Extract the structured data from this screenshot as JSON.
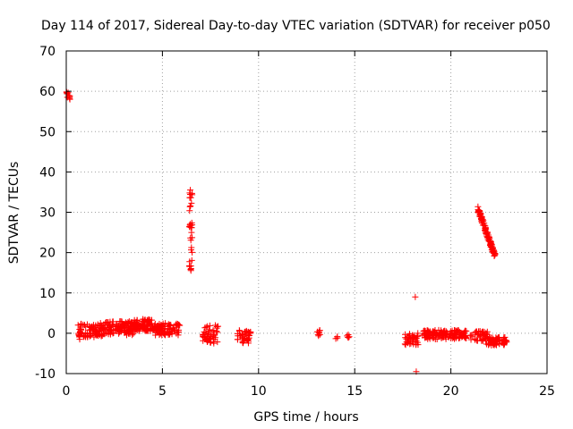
{
  "chart_data": {
    "type": "scatter",
    "title": "Day 114 of 2017, Sidereal Day-to-day VTEC variation (SDTVAR) for receiver p050",
    "xlabel": "GPS time / hours",
    "ylabel": "SDTVAR / TECUs",
    "xlim": [
      0,
      25
    ],
    "ylim": [
      -10,
      70
    ],
    "xticks": [
      "0",
      "5",
      "10",
      "15",
      "20",
      "25"
    ],
    "yticks": [
      "-10",
      "0",
      "10",
      "20",
      "30",
      "40",
      "50",
      "60",
      "70"
    ],
    "grid": true,
    "marker": "plus",
    "color": "#ff0000",
    "clusters": [
      {
        "x0": 0.0,
        "x1": 0.25,
        "y0": 58.0,
        "y1": 60.0,
        "n": 10
      },
      {
        "x0": 0.6,
        "x1": 2.0,
        "y0": -1.0,
        "y1": 2.5,
        "n": 90
      },
      {
        "x0": 2.0,
        "x1": 3.5,
        "y0": -0.5,
        "y1": 3.0,
        "n": 110
      },
      {
        "x0": 3.5,
        "x1": 4.5,
        "y0": 0.5,
        "y1": 3.5,
        "n": 90
      },
      {
        "x0": 4.5,
        "x1": 5.9,
        "y0": -0.5,
        "y1": 2.5,
        "n": 90
      },
      {
        "x0": 6.4,
        "x1": 6.55,
        "y0": 15.0,
        "y1": 35.0,
        "n": 35
      },
      {
        "x0": 7.1,
        "x1": 7.9,
        "y0": -2.5,
        "y1": 2.0,
        "n": 50
      },
      {
        "x0": 8.9,
        "x1": 9.6,
        "y0": -2.5,
        "y1": 1.0,
        "n": 40
      },
      {
        "x0": 13.0,
        "x1": 13.2,
        "y0": -1.0,
        "y1": 0.8,
        "n": 8
      },
      {
        "x0": 14.0,
        "x1": 14.1,
        "y0": -1.5,
        "y1": 1.0,
        "n": 3
      },
      {
        "x0": 14.6,
        "x1": 14.8,
        "y0": -1.2,
        "y1": 0.0,
        "n": 5
      },
      {
        "x0": 17.6,
        "x1": 18.3,
        "y0": -3.0,
        "y1": 0.0,
        "n": 40
      },
      {
        "x0": 18.5,
        "x1": 20.8,
        "y0": -1.5,
        "y1": 0.8,
        "n": 140
      },
      {
        "x0": 21.0,
        "x1": 21.9,
        "y0": -2.0,
        "y1": 0.5,
        "n": 40
      },
      {
        "x0": 21.8,
        "x1": 22.9,
        "y0": -3.0,
        "y1": -1.0,
        "n": 70
      }
    ],
    "diagonal_trace": {
      "x0": 21.4,
      "x1": 22.3,
      "y0": 31.0,
      "y1": 19.0,
      "spread": 1.5,
      "n": 120
    },
    "isolated_points": [
      {
        "x": 18.15,
        "y": 9.0
      },
      {
        "x": 18.2,
        "y": -9.5
      },
      {
        "x": 6.45,
        "y": 35.5
      },
      {
        "x": 0.7,
        "y": -1.5
      }
    ]
  }
}
